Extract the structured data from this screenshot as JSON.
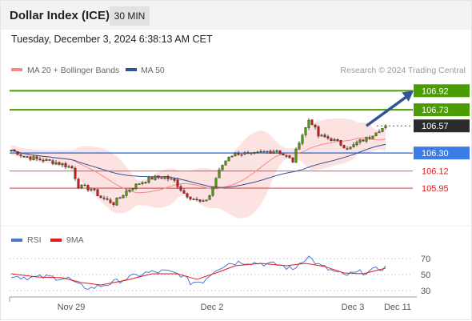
{
  "header": {
    "title": "Dollar Index (ICE)",
    "timeframe": "30 MIN",
    "datetime": "Tuesday, December 3, 2024 6:38:13 AM CET"
  },
  "legend": {
    "items": [
      {
        "label": "MA 20 + Bollinger Bands",
        "color": "#f28a8a"
      },
      {
        "label": "MA 50",
        "color": "#2f5597"
      }
    ],
    "source": "Research © 2024 Trading Central"
  },
  "rsi_legend": {
    "items": [
      {
        "label": "RSI",
        "color": "#4a78d0"
      },
      {
        "label": "9MA",
        "color": "#e21b1b"
      }
    ]
  },
  "chart_data": [
    {
      "type": "candlestick",
      "ylim": [
        105.6,
        107.05
      ],
      "x_ticks": [
        "Nov 29",
        "Dec 2",
        "Dec 3",
        "Dec 11"
      ],
      "x_tick_index": [
        20,
        64,
        108,
        122
      ],
      "n_bars": 118,
      "anchors": [
        [
          0,
          106.33
        ],
        [
          4,
          106.27
        ],
        [
          8,
          106.24
        ],
        [
          12,
          106.22
        ],
        [
          16,
          106.19
        ],
        [
          19,
          106.15
        ],
        [
          21,
          105.97
        ],
        [
          25,
          105.94
        ],
        [
          28,
          105.86
        ],
        [
          32,
          105.8
        ],
        [
          36,
          105.92
        ],
        [
          40,
          106.0
        ],
        [
          44,
          106.05
        ],
        [
          48,
          106.06
        ],
        [
          51,
          106.02
        ],
        [
          54,
          105.9
        ],
        [
          57,
          105.84
        ],
        [
          60,
          105.8
        ],
        [
          62,
          105.88
        ],
        [
          64,
          106.05
        ],
        [
          66,
          106.18
        ],
        [
          68,
          106.27
        ],
        [
          71,
          106.3
        ],
        [
          75,
          106.28
        ],
        [
          79,
          106.31
        ],
        [
          83,
          106.33
        ],
        [
          86,
          106.26
        ],
        [
          88,
          106.22
        ],
        [
          90,
          106.42
        ],
        [
          92,
          106.55
        ],
        [
          93,
          106.63
        ],
        [
          94,
          106.6
        ],
        [
          96,
          106.47
        ],
        [
          100,
          106.44
        ],
        [
          104,
          106.37
        ],
        [
          106,
          106.35
        ],
        [
          108,
          106.4
        ],
        [
          112,
          106.46
        ],
        [
          114,
          106.52
        ],
        [
          118,
          106.57
        ]
      ],
      "levels": [
        {
          "label": "106.92",
          "value": 106.92,
          "kind": "resistance",
          "color": "#4a9d00"
        },
        {
          "label": "106.73",
          "value": 106.73,
          "kind": "resistance",
          "color": "#4a9d00"
        },
        {
          "label": "106.57",
          "value": 106.57,
          "kind": "last",
          "color": "#2b2b2b"
        },
        {
          "label": "106.30",
          "value": 106.3,
          "kind": "pivot",
          "color": "#3b7de8"
        },
        {
          "label": "106.12",
          "value": 106.12,
          "kind": "support",
          "color": "#e21b1b"
        },
        {
          "label": "105.95",
          "value": 105.95,
          "kind": "support",
          "color": "#e21b1b"
        }
      ],
      "arrow": {
        "from": [
          111,
          106.57
        ],
        "to": [
          118,
          106.92
        ],
        "color": "#2f5597"
      },
      "candle_colors": {
        "up": "#4a9d00",
        "down": "#d31515"
      }
    },
    {
      "type": "line",
      "name": "RSI panel",
      "ylim": [
        20,
        80
      ],
      "y_ticks": [
        70,
        50,
        30
      ],
      "rsi_anchors": [
        [
          0,
          49
        ],
        [
          6,
          46
        ],
        [
          12,
          47
        ],
        [
          18,
          45
        ],
        [
          21,
          36
        ],
        [
          25,
          33
        ],
        [
          30,
          38
        ],
        [
          36,
          45
        ],
        [
          42,
          52
        ],
        [
          48,
          54
        ],
        [
          53,
          50
        ],
        [
          56,
          40
        ],
        [
          60,
          42
        ],
        [
          64,
          57
        ],
        [
          68,
          64
        ],
        [
          72,
          66
        ],
        [
          78,
          64
        ],
        [
          84,
          62
        ],
        [
          88,
          56
        ],
        [
          91,
          68
        ],
        [
          93,
          72
        ],
        [
          96,
          62
        ],
        [
          100,
          55
        ],
        [
          104,
          49
        ],
        [
          108,
          52
        ],
        [
          112,
          54
        ],
        [
          118,
          60
        ]
      ],
      "ma_anchors": [
        [
          0,
          51
        ],
        [
          8,
          47
        ],
        [
          16,
          46
        ],
        [
          22,
          40
        ],
        [
          28,
          37
        ],
        [
          36,
          43
        ],
        [
          44,
          51
        ],
        [
          52,
          51
        ],
        [
          58,
          44
        ],
        [
          64,
          52
        ],
        [
          70,
          61
        ],
        [
          78,
          64
        ],
        [
          86,
          61
        ],
        [
          92,
          64
        ],
        [
          98,
          60
        ],
        [
          104,
          52
        ],
        [
          110,
          51
        ],
        [
          118,
          59
        ]
      ]
    }
  ]
}
